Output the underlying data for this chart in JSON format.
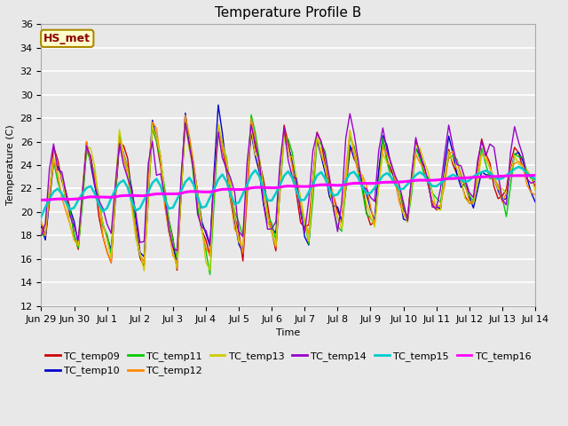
{
  "title": "Temperature Profile B",
  "xlabel": "Time",
  "ylabel": "Temperature (C)",
  "ylim": [
    12,
    36
  ],
  "annotation_text": "HS_met",
  "series_colors": {
    "TC_temp09": "#cc0000",
    "TC_temp10": "#0000cc",
    "TC_temp11": "#00cc00",
    "TC_temp12": "#ff8800",
    "TC_temp13": "#cccc00",
    "TC_temp14": "#9900cc",
    "TC_temp15": "#00cccc",
    "TC_temp16": "#ff00ff"
  },
  "xtick_labels": [
    "Jun 29",
    "Jun 30",
    "Jul 1",
    "Jul 2",
    "Jul 3",
    "Jul 4",
    "Jul 5",
    "Jul 6",
    "Jul 7",
    "Jul 8",
    "Jul 9",
    "Jul 10",
    "Jul 11",
    "Jul 12",
    "Jul 13",
    "Jul 14"
  ],
  "ytick_values": [
    12,
    14,
    16,
    18,
    20,
    22,
    24,
    26,
    28,
    30,
    32,
    34,
    36
  ],
  "bg_color": "#e8e8e8",
  "fig_bg_color": "#e8e8e8",
  "grid_color": "#ffffff",
  "title_fontsize": 11,
  "axis_fontsize": 8,
  "legend_fontsize": 8
}
